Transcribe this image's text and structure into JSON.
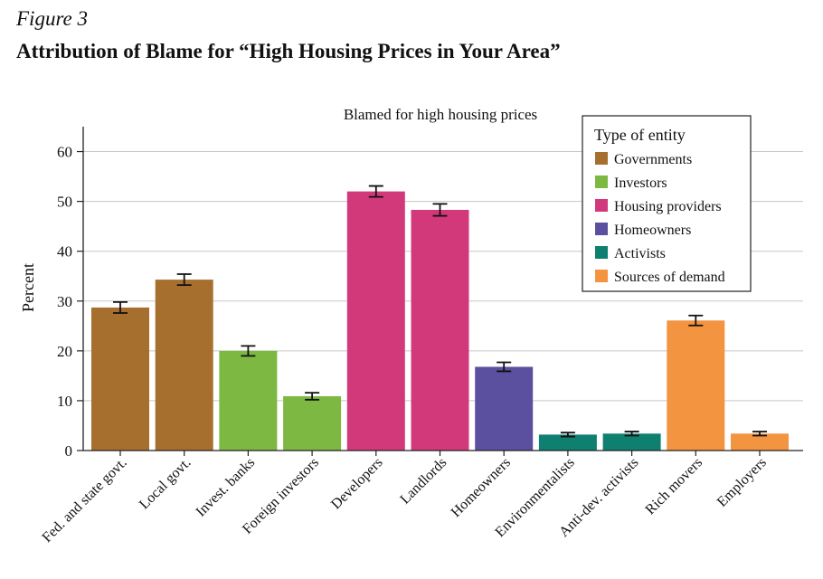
{
  "figure_label": "Figure 3",
  "figure_title": "Attribution of Blame for “High Housing Prices in Your Area”",
  "chart_data": {
    "type": "bar",
    "title": "Blamed for high housing prices",
    "xlabel": "",
    "ylabel": "Percent",
    "ylim": [
      0,
      65
    ],
    "yticks": [
      0,
      10,
      20,
      30,
      40,
      50,
      60
    ],
    "grid": true,
    "legend_position": "top-right",
    "legend_title": "Type of entity",
    "groups": [
      {
        "name": "Governments",
        "color": "#a66f2e"
      },
      {
        "name": "Investors",
        "color": "#7db843"
      },
      {
        "name": "Housing providers",
        "color": "#d2397b"
      },
      {
        "name": "Homeowners",
        "color": "#5b50a0"
      },
      {
        "name": "Activists",
        "color": "#0f7f6f"
      },
      {
        "name": "Sources of demand",
        "color": "#f39441"
      }
    ],
    "categories": [
      "Fed. and state govt.",
      "Local govt.",
      "Invest. banks",
      "Foreign investors",
      "Developers",
      "Landlords",
      "Homeowners",
      "Environmentalists",
      "Anti-dev. activists",
      "Rich movers",
      "Employers"
    ],
    "values": [
      28.7,
      34.3,
      20.0,
      10.9,
      52.0,
      48.3,
      16.8,
      3.2,
      3.4,
      26.1,
      3.4
    ],
    "error": [
      1.1,
      1.1,
      1.0,
      0.7,
      1.1,
      1.2,
      0.9,
      0.4,
      0.4,
      1.0,
      0.4
    ],
    "group_index": [
      0,
      0,
      1,
      1,
      2,
      2,
      3,
      4,
      4,
      5,
      5
    ]
  }
}
